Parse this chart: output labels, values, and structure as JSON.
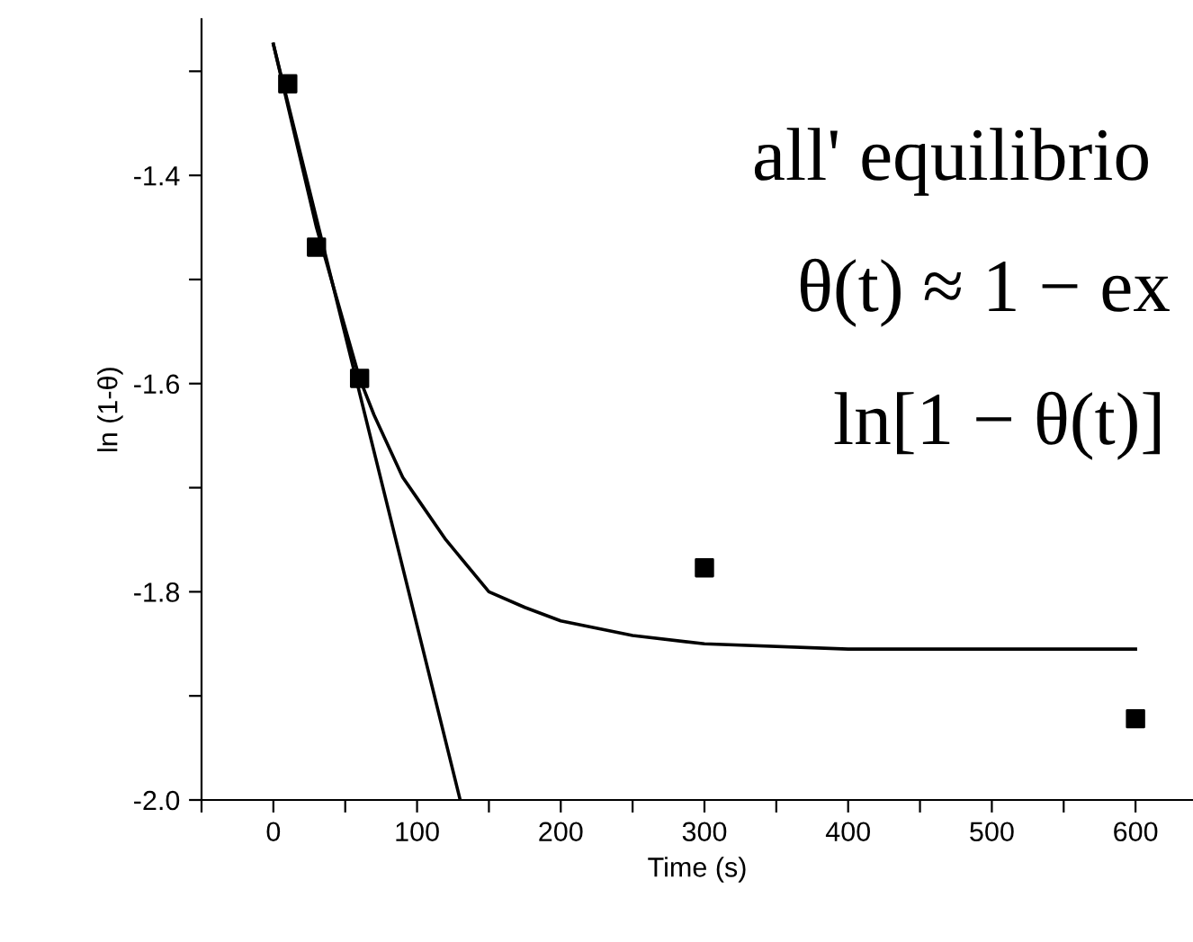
{
  "chart_data": {
    "type": "scatter",
    "xlabel": "Time (s)",
    "ylabel": "ln (1-θ)",
    "xlim": [
      -50,
      640
    ],
    "ylim": [
      -2.0,
      -1.25
    ],
    "xticks": [
      {
        "value": -50,
        "label": null
      },
      0,
      {
        "value": 50,
        "label": null
      },
      100,
      {
        "value": 150,
        "label": null
      },
      200,
      {
        "value": 250,
        "label": null
      },
      300,
      {
        "value": 350,
        "label": null
      },
      400,
      {
        "value": 450,
        "label": null
      },
      500,
      {
        "value": 550,
        "label": null
      },
      600
    ],
    "yticks": [
      {
        "value": -2.0,
        "label": "-2.0"
      },
      {
        "value": -1.9,
        "label": null
      },
      {
        "value": -1.8,
        "label": "-1.8"
      },
      {
        "value": -1.7,
        "label": null
      },
      {
        "value": -1.6,
        "label": "-1.6"
      },
      {
        "value": -1.5,
        "label": null
      },
      {
        "value": -1.4,
        "label": "-1.4"
      },
      {
        "value": -1.3,
        "label": null
      }
    ],
    "grid": false,
    "legend": false,
    "series": [
      {
        "type": "line",
        "color": "#000000",
        "marker": "none",
        "line_style": "solid",
        "x": [
          0,
          30,
          60,
          70,
          80,
          90,
          100,
          120,
          150,
          175,
          200,
          250,
          300,
          400,
          500,
          600
        ],
        "values": [
          -1.274,
          -1.45,
          -1.595,
          -1.63,
          -1.66,
          -1.69,
          -1.71,
          -1.75,
          -1.8,
          -1.815,
          -1.828,
          -1.842,
          -1.85,
          -1.855,
          -1.855,
          -1.855
        ]
      },
      {
        "type": "line",
        "color": "#000000",
        "marker": "none",
        "line_style": "solid",
        "x": [
          0,
          130
        ],
        "values": [
          -1.274,
          -2.0
        ]
      },
      {
        "color": "#000000",
        "marker": "square",
        "x": [
          10,
          30,
          60,
          300,
          600
        ],
        "values": [
          -1.312,
          -1.469,
          -1.595,
          -1.777,
          -1.922
        ]
      }
    ],
    "annotations": [
      "all' equilibrio",
      "θ(t) ≈ 1 − ex",
      "ln[1 − θ(t)]"
    ]
  }
}
